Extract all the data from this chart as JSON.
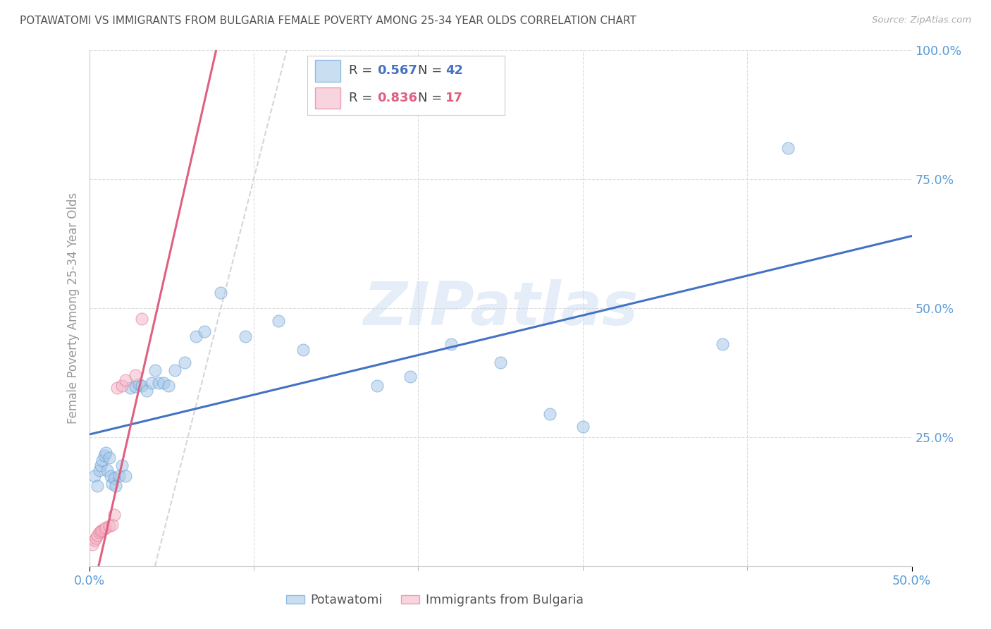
{
  "title": "POTAWATOMI VS IMMIGRANTS FROM BULGARIA FEMALE POVERTY AMONG 25-34 YEAR OLDS CORRELATION CHART",
  "source": "Source: ZipAtlas.com",
  "ylabel": "Female Poverty Among 25-34 Year Olds",
  "r_blue": 0.567,
  "n_blue": 42,
  "r_pink": 0.836,
  "n_pink": 17,
  "blue_dot_color": "#a8c8e8",
  "blue_edge_color": "#5b9bd5",
  "pink_dot_color": "#f4b8c8",
  "pink_edge_color": "#e07090",
  "blue_line_color": "#4472c4",
  "pink_line_color": "#e06080",
  "ref_line_color": "#cccccc",
  "axis_tick_color": "#5b9bd5",
  "watermark": "ZIPatlas",
  "blue_scatter_x": [
    0.003,
    0.005,
    0.006,
    0.007,
    0.008,
    0.009,
    0.01,
    0.011,
    0.012,
    0.013,
    0.014,
    0.015,
    0.016,
    0.018,
    0.02,
    0.022,
    0.025,
    0.028,
    0.03,
    0.032,
    0.035,
    0.038,
    0.04,
    0.042,
    0.045,
    0.048,
    0.052,
    0.058,
    0.065,
    0.07,
    0.08,
    0.095,
    0.115,
    0.13,
    0.175,
    0.195,
    0.22,
    0.25,
    0.28,
    0.3,
    0.385,
    0.425
  ],
  "blue_scatter_y": [
    0.175,
    0.155,
    0.185,
    0.195,
    0.205,
    0.215,
    0.22,
    0.185,
    0.21,
    0.175,
    0.16,
    0.17,
    0.155,
    0.175,
    0.195,
    0.175,
    0.345,
    0.348,
    0.352,
    0.35,
    0.34,
    0.355,
    0.38,
    0.355,
    0.355,
    0.35,
    0.38,
    0.395,
    0.445,
    0.455,
    0.53,
    0.445,
    0.475,
    0.42,
    0.35,
    0.368,
    0.43,
    0.395,
    0.295,
    0.27,
    0.43,
    0.81
  ],
  "pink_scatter_x": [
    0.002,
    0.003,
    0.004,
    0.005,
    0.006,
    0.007,
    0.008,
    0.009,
    0.01,
    0.012,
    0.014,
    0.015,
    0.017,
    0.02,
    0.022,
    0.028,
    0.032
  ],
  "pink_scatter_y": [
    0.042,
    0.05,
    0.055,
    0.06,
    0.065,
    0.068,
    0.07,
    0.072,
    0.075,
    0.078,
    0.08,
    0.1,
    0.345,
    0.35,
    0.36,
    0.37,
    0.48
  ],
  "xlim": [
    0.0,
    0.5
  ],
  "ylim": [
    0.0,
    1.0
  ],
  "xticks_major": [
    0.0,
    0.5
  ],
  "xticks_minor": [
    0.1,
    0.2,
    0.3,
    0.4
  ],
  "yticks": [
    0.0,
    0.25,
    0.5,
    0.75,
    1.0
  ]
}
